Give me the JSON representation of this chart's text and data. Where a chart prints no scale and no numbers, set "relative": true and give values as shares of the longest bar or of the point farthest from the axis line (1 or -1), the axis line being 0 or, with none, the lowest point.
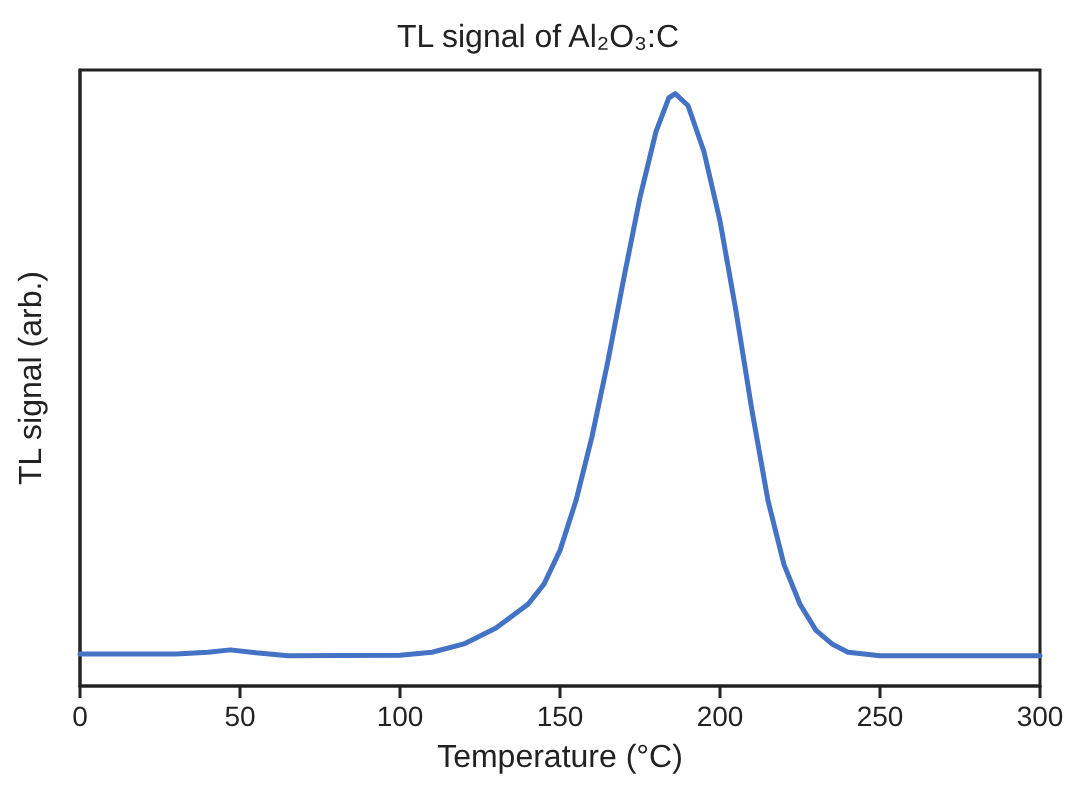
{
  "chart_data": {
    "type": "line",
    "title": "TL signal of Al₂O₃:C",
    "xlabel": "Temperature (°C)",
    "ylabel": "TL signal (arb.)",
    "relative": true,
    "color": "#4472c4",
    "marker": "none",
    "line_style": "solid",
    "x": [
      0,
      30,
      40,
      47,
      55,
      65,
      100,
      110,
      120,
      130,
      140,
      145,
      150,
      155,
      160,
      165,
      170,
      175,
      180,
      184,
      186,
      190,
      195,
      200,
      205,
      210,
      215,
      220,
      225,
      230,
      235,
      240,
      250,
      270,
      300
    ],
    "values": [
      0.054,
      0.054,
      0.057,
      0.061,
      0.056,
      0.051,
      0.052,
      0.057,
      0.071,
      0.098,
      0.138,
      0.172,
      0.229,
      0.313,
      0.421,
      0.549,
      0.69,
      0.825,
      0.936,
      0.993,
      1,
      0.98,
      0.902,
      0.785,
      0.633,
      0.465,
      0.313,
      0.205,
      0.138,
      0.094,
      0.071,
      0.057,
      0.051,
      0.051,
      0.051
    ],
    "xlim": [
      0,
      300
    ],
    "xticks": [
      0,
      50,
      100,
      150,
      200,
      250,
      300
    ]
  }
}
